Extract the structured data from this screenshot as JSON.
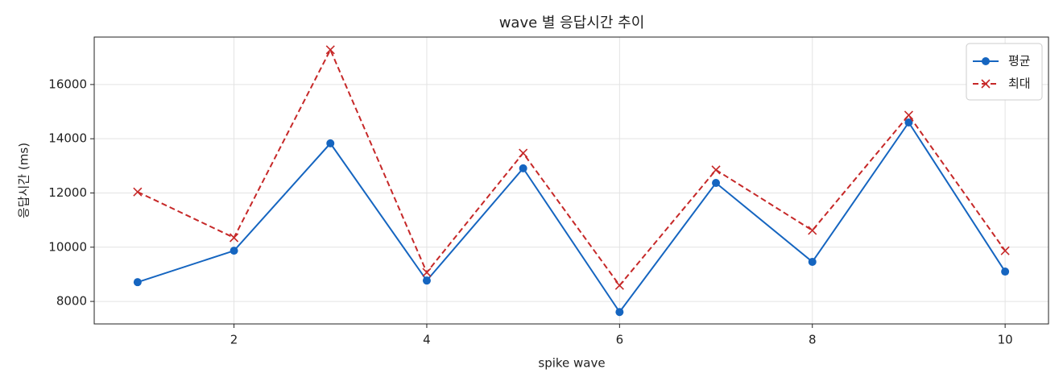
{
  "chart_data": {
    "type": "line",
    "title": "wave 별 응답시간 추이",
    "x_label": "spike wave",
    "y_label": "응답시간 (ms)",
    "x": [
      1,
      2,
      3,
      4,
      5,
      6,
      7,
      8,
      9,
      10
    ],
    "series": [
      {
        "name": "평균",
        "color": "#1565c0",
        "marker": "circle",
        "linestyle": "solid",
        "values": [
          8710,
          9870,
          13830,
          8770,
          12910,
          7610,
          12370,
          9460,
          14600,
          9100
        ]
      },
      {
        "name": "최대",
        "color": "#c62828",
        "marker": "x",
        "linestyle": "dashed",
        "values": [
          12040,
          10350,
          17280,
          9070,
          13470,
          8590,
          12850,
          10620,
          14870,
          9870
        ]
      }
    ],
    "xlim": [
      0.55,
      10.45
    ],
    "ylim": [
      7170,
      17750
    ],
    "xticks": [
      2,
      4,
      6,
      8,
      10
    ],
    "yticks": [
      8000,
      10000,
      12000,
      14000,
      16000
    ],
    "grid": true,
    "legend": "upper right"
  }
}
